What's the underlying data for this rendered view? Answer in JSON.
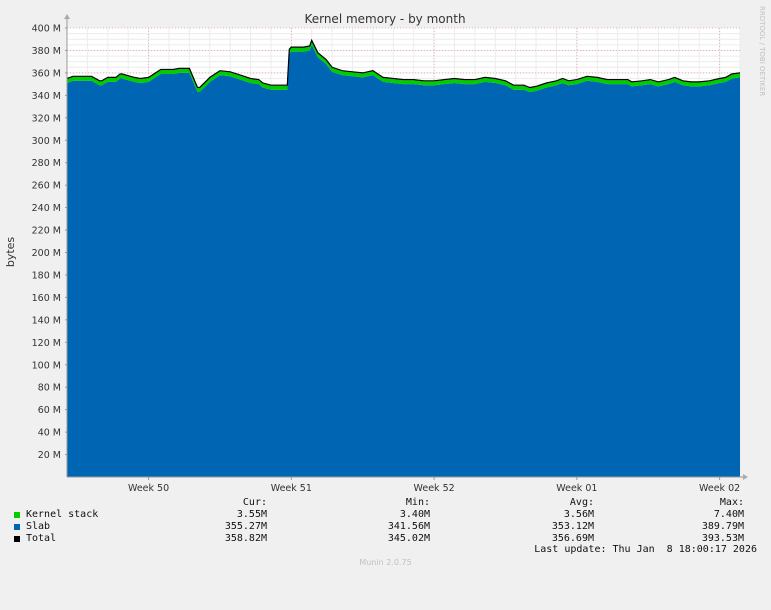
{
  "chart_data": {
    "type": "area",
    "title": "Kernel memory - by month",
    "ylabel": "bytes",
    "watermark": "RRDTOOL / TOBI OETIKER",
    "ylim": [
      0,
      400
    ],
    "yunit": "M",
    "yticks": [
      20,
      40,
      60,
      80,
      100,
      120,
      140,
      160,
      180,
      200,
      220,
      240,
      260,
      280,
      300,
      320,
      340,
      360,
      380,
      400
    ],
    "ytick_labels": [
      "20 M",
      "40 M",
      "60 M",
      "80 M",
      "100 M",
      "120 M",
      "140 M",
      "160 M",
      "180 M",
      "200 M",
      "220 M",
      "240 M",
      "260 M",
      "280 M",
      "300 M",
      "320 M",
      "340 M",
      "360 M",
      "380 M",
      "400 M"
    ],
    "xlim_days": [
      0,
      33
    ],
    "x_ticks": [
      {
        "day": 4,
        "label": "Week 50"
      },
      {
        "day": 11,
        "label": "Week 51"
      },
      {
        "day": 18,
        "label": "Week 52"
      },
      {
        "day": 25,
        "label": "Week 01"
      },
      {
        "day": 32,
        "label": "Week 02"
      }
    ],
    "grid": true,
    "x": [
      0,
      0.3,
      0.7,
      1.2,
      1.6,
      1.7,
      2.0,
      2.4,
      2.6,
      2.7,
      3.3,
      3.6,
      4.0,
      4.5,
      4.6,
      5.2,
      5.5,
      6.0,
      6.4,
      6.5,
      6.9,
      7.0,
      7.5,
      8.0,
      8.5,
      9.0,
      9.4,
      9.6,
      10.0,
      10.5,
      10.8,
      10.9,
      11.0,
      11.6,
      11.9,
      12.0,
      12.3,
      12.7,
      13.0,
      13.5,
      14.0,
      14.5,
      15.0,
      15.5,
      16.0,
      16.5,
      17.0,
      17.5,
      18.0,
      18.5,
      19.0,
      19.5,
      20.0,
      20.5,
      21.0,
      21.5,
      21.9,
      22.4,
      22.7,
      23.0,
      23.5,
      24.0,
      24.3,
      24.6,
      25.0,
      25.5,
      26.0,
      26.5,
      27.0,
      27.5,
      27.7,
      28.2,
      28.6,
      29.0,
      29.5,
      29.8,
      30.2,
      30.6,
      31.0,
      31.5,
      32.0,
      32.3,
      32.6,
      33.0
    ],
    "series": [
      {
        "name": "Slab",
        "color": "#0066b3",
        "values": [
          351,
          353,
          353,
          353,
          349,
          349,
          352,
          352,
          355,
          355,
          352,
          351,
          352,
          358,
          359,
          359,
          360,
          360,
          343,
          343,
          350,
          352,
          358,
          357,
          354,
          351,
          350,
          347,
          345,
          345,
          345,
          377,
          379,
          379,
          380,
          385,
          374,
          368,
          361,
          358,
          357,
          356,
          358,
          352,
          351,
          350,
          350,
          349,
          349,
          350,
          351,
          350,
          350,
          352,
          351,
          349,
          345,
          345,
          343,
          344,
          347,
          349,
          351,
          349,
          350,
          353,
          352,
          350,
          350,
          350,
          348,
          349,
          350,
          348,
          350,
          352,
          349,
          348,
          348,
          349,
          351,
          352,
          355,
          356
        ]
      },
      {
        "name": "Kernel stack",
        "color": "#00cc00",
        "values": [
          3.5,
          3.5,
          3.5,
          3.5,
          3.5,
          3.5,
          3.5,
          3.5,
          3.5,
          3.5,
          3.5,
          3.5,
          3.5,
          3.5,
          3.5,
          3.5,
          3.5,
          3.5,
          3.5,
          3.5,
          3.5,
          3.5,
          3.5,
          3.5,
          3.5,
          3.5,
          3.5,
          3.5,
          3.5,
          3.5,
          3.5,
          3.5,
          3.5,
          3.5,
          3.5,
          3.5,
          3.5,
          3.5,
          3.5,
          3.5,
          3.5,
          3.5,
          3.5,
          3.5,
          3.5,
          3.5,
          3.5,
          3.5,
          3.5,
          3.5,
          3.5,
          3.5,
          3.5,
          3.5,
          3.5,
          3.5,
          3.5,
          3.5,
          3.5,
          3.5,
          3.5,
          3.5,
          3.5,
          3.5,
          3.5,
          3.5,
          3.5,
          3.5,
          3.5,
          3.5,
          3.5,
          3.5,
          3.5,
          3.5,
          3.5,
          3.5,
          3.5,
          3.5,
          3.5,
          3.5,
          3.5,
          3.5,
          3.5,
          3.5
        ]
      },
      {
        "name": "Total",
        "color": "#000000",
        "values": [
          355,
          357,
          357,
          357,
          353,
          353,
          356,
          356,
          359,
          359,
          356,
          355,
          356,
          362,
          363,
          363,
          364,
          364,
          347,
          347,
          354,
          356,
          362,
          361,
          358,
          355,
          354,
          351,
          349,
          349,
          349,
          381,
          383,
          383,
          384,
          389,
          378,
          372,
          365,
          362,
          361,
          360,
          362,
          356,
          355,
          354,
          354,
          353,
          353,
          354,
          355,
          354,
          354,
          356,
          355,
          353,
          349,
          349,
          347,
          348,
          351,
          353,
          355,
          353,
          354,
          357,
          356,
          354,
          354,
          354,
          352,
          353,
          354,
          352,
          354,
          356,
          353,
          352,
          352,
          353,
          355,
          356,
          359,
          360
        ]
      }
    ]
  },
  "legend": {
    "headers": {
      "cur": "Cur:",
      "min": "Min:",
      "avg": "Avg:",
      "max": "Max:"
    },
    "rows": [
      {
        "name": "Kernel stack",
        "color": "#00cc00",
        "cur": "3.55M",
        "min": "3.40M",
        "avg": "3.56M",
        "max": "7.40M"
      },
      {
        "name": "Slab",
        "color": "#0066b3",
        "cur": "355.27M",
        "min": "341.56M",
        "avg": "353.12M",
        "max": "389.79M"
      },
      {
        "name": "Total",
        "color": "#000000",
        "cur": "358.82M",
        "min": "345.02M",
        "avg": "356.69M",
        "max": "393.53M"
      }
    ],
    "last_update": "Last update: Thu Jan  8 18:00:17 2026"
  },
  "footer": "Munin 2.0.75"
}
